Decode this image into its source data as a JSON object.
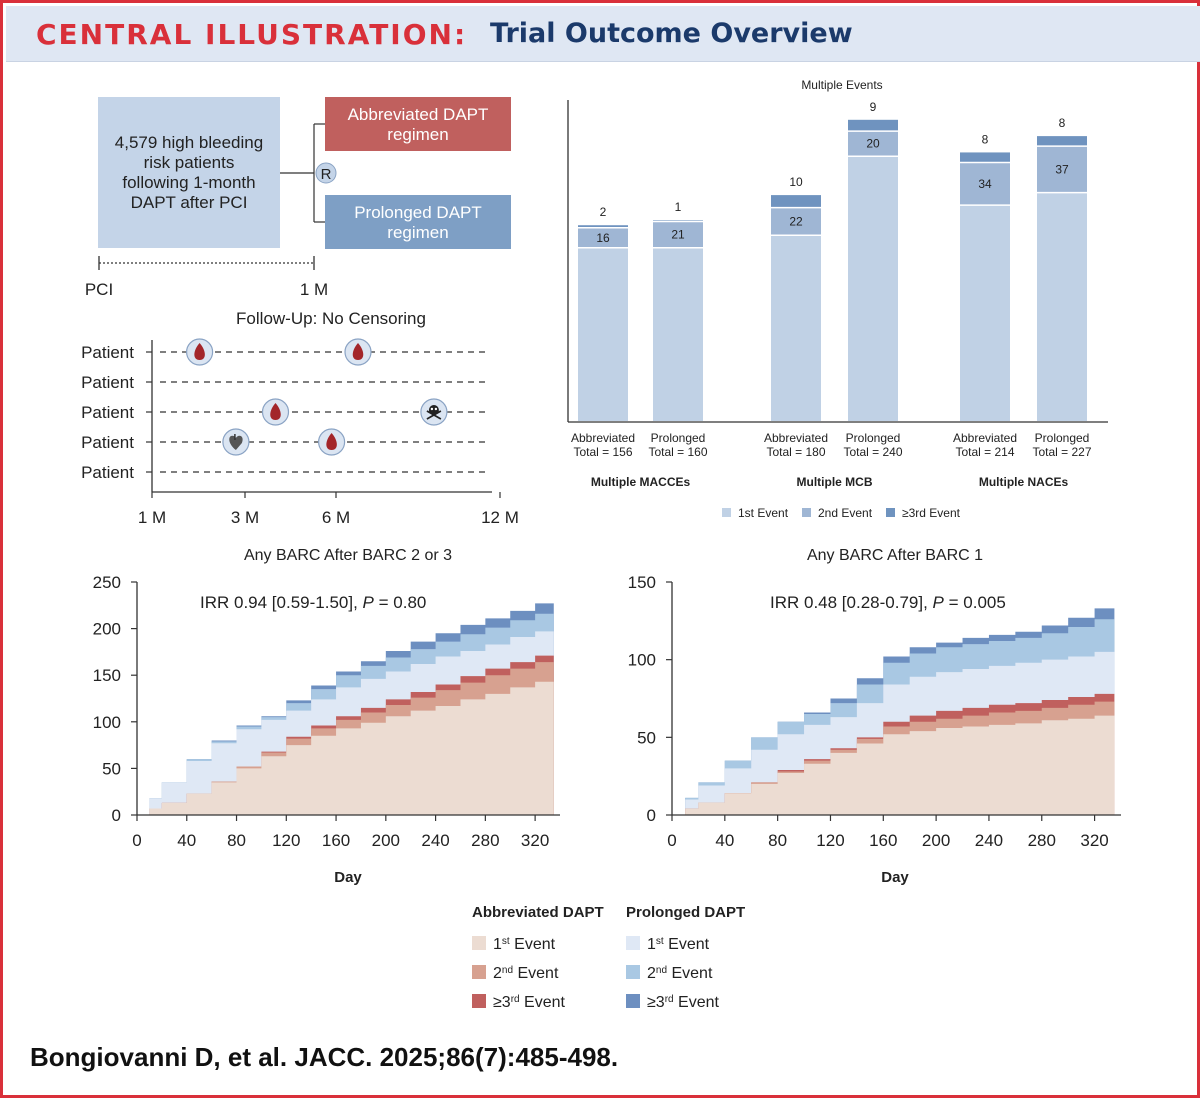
{
  "header": {
    "label": "CENTRAL ILLUSTRATION:",
    "title": "Trial Outcome Overview"
  },
  "design": {
    "population": [
      "4,579 high bleeding",
      "risk patients",
      "following 1-month",
      "DAPT after PCI"
    ],
    "randomization": "R",
    "arm_abbreviated": [
      "Abbreviated DAPT",
      "regimen"
    ],
    "arm_prolonged": [
      "Prolonged DAPT",
      "regimen"
    ],
    "timeline_start": "PCI",
    "timeline_end": "1 M",
    "colors": {
      "abbreviated": "#c0605e",
      "prolonged": "#7e9fc5",
      "population": "#c4d4e8"
    }
  },
  "followup": {
    "title": "Follow-Up: No Censoring",
    "row_label": "Patient",
    "axis_ticks": [
      "1 M",
      "3 M",
      "6 M",
      "12 M"
    ],
    "rows": [
      {
        "events": [
          {
            "icon": "blood-drop-icon",
            "pos": 0.12
          },
          {
            "icon": "blood-drop-icon",
            "pos": 0.6
          }
        ]
      },
      {
        "events": []
      },
      {
        "events": [
          {
            "icon": "blood-drop-icon",
            "pos": 0.35
          },
          {
            "icon": "skull-icon",
            "pos": 0.83
          }
        ]
      },
      {
        "events": [
          {
            "icon": "heart-icon",
            "pos": 0.23
          },
          {
            "icon": "blood-drop-icon",
            "pos": 0.52
          }
        ]
      },
      {
        "events": []
      }
    ]
  },
  "legend_top": {
    "first": "1st Event",
    "second": "2nd Event",
    "third": "≥3rd Event"
  },
  "legend_bottom": {
    "abbreviated_title": "Abbreviated DAPT",
    "prolonged_title": "Prolonged DAPT",
    "items": [
      {
        "num": "1",
        "sup": "st",
        "word": "Event"
      },
      {
        "num": "2",
        "sup": "nd",
        "word": "Event"
      },
      {
        "num": "≥3",
        "sup": "rd",
        "word": "Event"
      }
    ]
  },
  "chart_data": [
    {
      "type": "bar",
      "title": "Multiple Events",
      "stacked": true,
      "series_colors": [
        "#c0d1e5",
        "#9fb6d4",
        "#6f93bf"
      ],
      "legend": [
        "1st Event",
        "2nd Event",
        "≥3rd Event"
      ],
      "ylim": [
        0,
        250
      ],
      "groups": [
        {
          "label": "Multiple MACCEs",
          "bars": [
            {
              "arm": "Abbreviated",
              "total_label": "Total = 156",
              "first": 138,
              "second": 16,
              "third": 2
            },
            {
              "arm": "Prolonged",
              "total_label": "Total = 160",
              "first": 138,
              "second": 21,
              "third": 1
            }
          ]
        },
        {
          "label": "Multiple MCB",
          "bars": [
            {
              "arm": "Abbreviated",
              "total_label": "Total = 180",
              "first": 148,
              "second": 22,
              "third": 10
            },
            {
              "arm": "Prolonged",
              "total_label": "Total = 240",
              "first": 211,
              "second": 20,
              "third": 9
            }
          ]
        },
        {
          "label": "Multiple NACEs",
          "bars": [
            {
              "arm": "Abbreviated",
              "total_label": "Total = 214",
              "first": 172,
              "second": 34,
              "third": 8
            },
            {
              "arm": "Prolonged",
              "total_label": "Total = 227",
              "first": 182,
              "second": 37,
              "third": 8
            }
          ]
        }
      ]
    },
    {
      "type": "area",
      "title": "Any BARC After BARC 2 or 3",
      "annotation": {
        "prefix": "IRR 0.94 [0.59-1.50], ",
        "p": "P",
        "suffix": " = 0.80"
      },
      "xlabel": "Day",
      "ylabel": "",
      "xlim": [
        0,
        340
      ],
      "ylim": [
        0,
        250
      ],
      "xticks": [
        0,
        40,
        80,
        120,
        160,
        200,
        240,
        280,
        320
      ],
      "yticks": [
        0,
        50,
        100,
        150,
        200,
        250
      ],
      "x": [
        0,
        10,
        20,
        40,
        60,
        80,
        100,
        120,
        140,
        160,
        180,
        200,
        220,
        240,
        260,
        280,
        300,
        320,
        335
      ],
      "series": [
        {
          "name": "Abbreviated DAPT 1st Event",
          "color": "#ecdcd2",
          "values": [
            0,
            7,
            13,
            23,
            35,
            50,
            63,
            75,
            85,
            93,
            99,
            106,
            112,
            117,
            124,
            130,
            137,
            143,
            149
          ]
        },
        {
          "name": "Abbreviated DAPT 2nd Event",
          "color": "#d7a190",
          "values": [
            0,
            7,
            13,
            23,
            36,
            52,
            67,
            82,
            93,
            102,
            110,
            118,
            126,
            134,
            142,
            150,
            157,
            164,
            171
          ]
        },
        {
          "name": "Abbreviated DAPT ≥3rd Event",
          "color": "#c0605e",
          "values": [
            0,
            7,
            13,
            23,
            36,
            52,
            68,
            84,
            96,
            106,
            115,
            124,
            132,
            140,
            149,
            157,
            164,
            171,
            179
          ]
        },
        {
          "name": "Prolonged DAPT 1st Event",
          "color": "#dfe8f5",
          "values": [
            0,
            18,
            35,
            58,
            77,
            92,
            102,
            112,
            124,
            137,
            146,
            154,
            162,
            170,
            176,
            183,
            191,
            197,
            204
          ]
        },
        {
          "name": "Prolonged DAPT 2nd Event",
          "color": "#a9c8e3",
          "values": [
            0,
            18,
            35,
            60,
            79,
            95,
            105,
            120,
            135,
            150,
            160,
            169,
            178,
            186,
            194,
            201,
            209,
            216,
            225
          ]
        },
        {
          "name": "Prolonged DAPT ≥3rd Event",
          "color": "#6d8fc0",
          "values": [
            0,
            18,
            35,
            60,
            80,
            96,
            106,
            123,
            139,
            154,
            165,
            176,
            186,
            195,
            204,
            211,
            219,
            227,
            236
          ]
        }
      ]
    },
    {
      "type": "area",
      "title": "Any BARC After BARC 1",
      "annotation": {
        "prefix": "IRR 0.48 [0.28-0.79], ",
        "p": "P",
        "suffix": " = 0.005"
      },
      "xlabel": "Day",
      "ylabel": "",
      "xlim": [
        0,
        340
      ],
      "ylim": [
        0,
        150
      ],
      "xticks": [
        0,
        40,
        80,
        120,
        160,
        200,
        240,
        280,
        320
      ],
      "yticks": [
        0,
        50,
        100,
        150
      ],
      "x": [
        0,
        10,
        20,
        40,
        60,
        80,
        100,
        120,
        140,
        160,
        180,
        200,
        220,
        240,
        260,
        280,
        300,
        320,
        335
      ],
      "series": [
        {
          "name": "Abbreviated DAPT 1st Event",
          "color": "#ecdcd2",
          "values": [
            0,
            4,
            8,
            14,
            20,
            27,
            33,
            40,
            46,
            52,
            54,
            56,
            57,
            58,
            59,
            61,
            62,
            64,
            66
          ]
        },
        {
          "name": "Abbreviated DAPT 2nd Event",
          "color": "#d7a190",
          "values": [
            0,
            4,
            8,
            14,
            21,
            28,
            35,
            42,
            49,
            57,
            60,
            62,
            64,
            66,
            67,
            69,
            71,
            73,
            75
          ]
        },
        {
          "name": "Abbreviated DAPT ≥3rd Event",
          "color": "#c0605e",
          "values": [
            0,
            4,
            8,
            14,
            21,
            29,
            36,
            43,
            50,
            60,
            64,
            67,
            69,
            71,
            72,
            74,
            76,
            78,
            81
          ]
        },
        {
          "name": "Prolonged DAPT 1st Event",
          "color": "#dfe8f5",
          "values": [
            0,
            10,
            19,
            30,
            42,
            52,
            58,
            63,
            72,
            84,
            89,
            92,
            94,
            96,
            98,
            100,
            102,
            105,
            110
          ]
        },
        {
          "name": "Prolonged DAPT 2nd Event",
          "color": "#a9c8e3",
          "values": [
            0,
            11,
            21,
            35,
            50,
            60,
            65,
            72,
            84,
            98,
            104,
            108,
            110,
            112,
            114,
            117,
            121,
            126,
            133
          ]
        },
        {
          "name": "Prolonged DAPT ≥3rd Event",
          "color": "#6d8fc0",
          "values": [
            0,
            11,
            21,
            35,
            50,
            60,
            66,
            75,
            88,
            102,
            108,
            111,
            114,
            116,
            118,
            122,
            127,
            133,
            146
          ]
        }
      ]
    }
  ],
  "citation": "Bongiovanni D, et al. JACC. 2025;86(7):485-498."
}
